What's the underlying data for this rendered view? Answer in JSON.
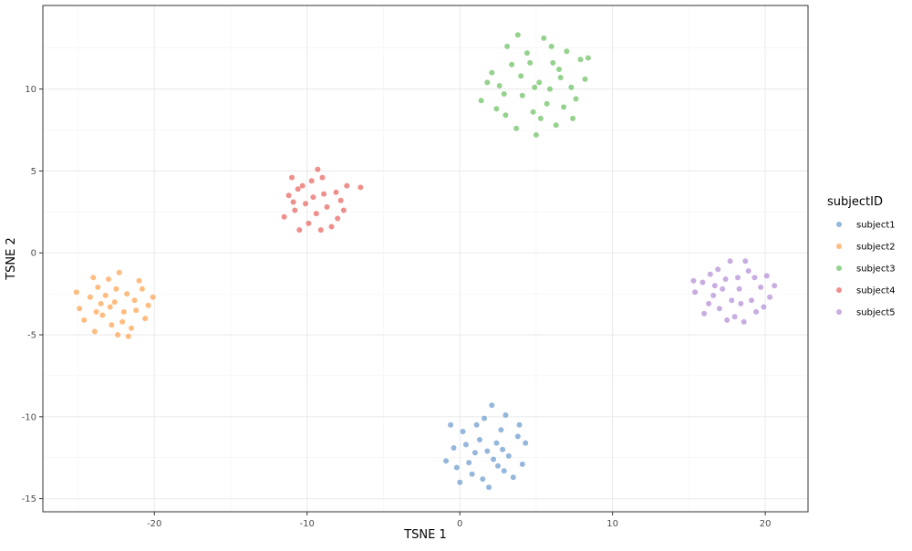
{
  "chart_data": {
    "type": "scatter",
    "title": "",
    "xlabel": "TSNE 1",
    "ylabel": "TSNE 2",
    "xlim": [
      -27.3,
      22.8
    ],
    "ylim": [
      -15.8,
      15.1
    ],
    "x_ticks": [
      -20,
      -10,
      0,
      10,
      20
    ],
    "x_tick_labels": [
      "-20",
      "-10",
      "0",
      "10",
      "20"
    ],
    "y_ticks": [
      -15,
      -10,
      -5,
      0,
      5,
      10
    ],
    "y_tick_labels": [
      "-15",
      "-10",
      "-5",
      "0",
      "5",
      "10"
    ],
    "grid": true,
    "legend": {
      "title": "subjectID",
      "position": "right"
    },
    "series": [
      {
        "name": "subject1",
        "color": "#6699CC",
        "points": [
          [
            1.8,
            -12.1
          ],
          [
            2.4,
            -11.6
          ],
          [
            0.6,
            -12.8
          ],
          [
            3.2,
            -12.4
          ],
          [
            1.1,
            -10.5
          ],
          [
            2.9,
            -13.3
          ],
          [
            -0.4,
            -11.9
          ],
          [
            1.5,
            -13.8
          ],
          [
            3.8,
            -11.2
          ],
          [
            0.2,
            -10.9
          ],
          [
            2.1,
            -9.3
          ],
          [
            4.1,
            -12.9
          ],
          [
            -0.9,
            -12.7
          ],
          [
            1.3,
            -11.4
          ],
          [
            2.7,
            -10.8
          ],
          [
            0.8,
            -13.5
          ],
          [
            3.5,
            -13.7
          ],
          [
            1.9,
            -14.3
          ],
          [
            -0.2,
            -13.1
          ],
          [
            4.3,
            -11.6
          ],
          [
            2.2,
            -12.6
          ],
          [
            0.4,
            -11.7
          ],
          [
            3.0,
            -9.9
          ],
          [
            1.6,
            -10.1
          ],
          [
            -0.6,
            -10.5
          ],
          [
            2.5,
            -13.0
          ],
          [
            3.9,
            -10.5
          ],
          [
            1.0,
            -12.2
          ],
          [
            0.0,
            -14.0
          ],
          [
            2.8,
            -12.0
          ]
        ]
      },
      {
        "name": "subject2",
        "color": "#FF9F4A",
        "points": [
          [
            -22.6,
            -3.0
          ],
          [
            -21.8,
            -2.5
          ],
          [
            -23.4,
            -3.8
          ],
          [
            -22.1,
            -4.2
          ],
          [
            -24.2,
            -2.7
          ],
          [
            -21.2,
            -3.5
          ],
          [
            -23.0,
            -1.6
          ],
          [
            -22.4,
            -5.0
          ],
          [
            -20.8,
            -2.2
          ],
          [
            -24.6,
            -4.1
          ],
          [
            -23.7,
            -2.1
          ],
          [
            -21.5,
            -4.6
          ],
          [
            -22.9,
            -3.3
          ],
          [
            -20.4,
            -3.2
          ],
          [
            -24.9,
            -3.4
          ],
          [
            -22.3,
            -1.2
          ],
          [
            -23.9,
            -4.8
          ],
          [
            -21.0,
            -1.7
          ],
          [
            -22.0,
            -3.6
          ],
          [
            -23.2,
            -2.6
          ],
          [
            -20.1,
            -2.7
          ],
          [
            -24.0,
            -1.5
          ],
          [
            -21.7,
            -5.1
          ],
          [
            -22.8,
            -4.4
          ],
          [
            -25.1,
            -2.4
          ],
          [
            -21.3,
            -2.9
          ],
          [
            -23.5,
            -3.1
          ],
          [
            -22.5,
            -2.2
          ],
          [
            -20.6,
            -4.0
          ],
          [
            -23.8,
            -3.6
          ]
        ]
      },
      {
        "name": "subject3",
        "color": "#66BF5C",
        "points": [
          [
            5.2,
            10.4
          ],
          [
            6.5,
            11.2
          ],
          [
            4.1,
            9.6
          ],
          [
            7.3,
            10.1
          ],
          [
            3.4,
            11.5
          ],
          [
            6.0,
            12.6
          ],
          [
            4.8,
            8.6
          ],
          [
            2.6,
            10.2
          ],
          [
            7.9,
            11.8
          ],
          [
            5.7,
            9.1
          ],
          [
            3.0,
            8.4
          ],
          [
            6.8,
            8.9
          ],
          [
            4.4,
            12.2
          ],
          [
            8.2,
            10.6
          ],
          [
            2.1,
            11.0
          ],
          [
            5.5,
            13.1
          ],
          [
            7.0,
            12.3
          ],
          [
            3.7,
            7.6
          ],
          [
            6.3,
            7.8
          ],
          [
            1.4,
            9.3
          ],
          [
            4.0,
            10.8
          ],
          [
            5.9,
            10.0
          ],
          [
            7.6,
            9.4
          ],
          [
            3.1,
            12.6
          ],
          [
            5.0,
            7.2
          ],
          [
            8.4,
            11.9
          ],
          [
            2.4,
            8.8
          ],
          [
            6.6,
            10.7
          ],
          [
            4.6,
            11.6
          ],
          [
            5.3,
            8.2
          ],
          [
            7.4,
            8.2
          ],
          [
            3.8,
            13.3
          ],
          [
            6.1,
            11.6
          ],
          [
            2.9,
            9.7
          ],
          [
            4.9,
            10.1
          ],
          [
            1.8,
            10.4
          ]
        ]
      },
      {
        "name": "subject4",
        "color": "#E8605A",
        "points": [
          [
            -9.6,
            3.4
          ],
          [
            -8.7,
            2.8
          ],
          [
            -10.3,
            4.1
          ],
          [
            -9.0,
            4.6
          ],
          [
            -10.8,
            2.6
          ],
          [
            -8.1,
            3.7
          ],
          [
            -9.9,
            1.8
          ],
          [
            -11.2,
            3.5
          ],
          [
            -7.6,
            2.6
          ],
          [
            -9.3,
            5.1
          ],
          [
            -10.5,
            1.4
          ],
          [
            -8.4,
            1.6
          ],
          [
            -11.0,
            4.6
          ],
          [
            -7.4,
            4.1
          ],
          [
            -9.4,
            2.4
          ],
          [
            -10.1,
            3.0
          ],
          [
            -8.9,
            3.6
          ],
          [
            -11.5,
            2.2
          ],
          [
            -8.0,
            2.1
          ],
          [
            -9.7,
            4.4
          ],
          [
            -10.6,
            3.9
          ],
          [
            -7.8,
            3.2
          ],
          [
            -9.1,
            1.4
          ],
          [
            -10.9,
            3.1
          ],
          [
            -6.5,
            4.0
          ]
        ]
      },
      {
        "name": "subject5",
        "color": "#B08AD6",
        "points": [
          [
            18.3,
            -2.2
          ],
          [
            17.4,
            -1.6
          ],
          [
            19.1,
            -2.9
          ],
          [
            16.6,
            -2.6
          ],
          [
            18.9,
            -1.1
          ],
          [
            17.0,
            -3.4
          ],
          [
            19.7,
            -2.1
          ],
          [
            15.9,
            -1.8
          ],
          [
            18.0,
            -3.9
          ],
          [
            20.1,
            -1.4
          ],
          [
            16.3,
            -3.1
          ],
          [
            17.7,
            -0.5
          ],
          [
            19.4,
            -3.6
          ],
          [
            15.4,
            -2.4
          ],
          [
            18.6,
            -4.2
          ],
          [
            16.9,
            -1.0
          ],
          [
            20.3,
            -2.7
          ],
          [
            17.2,
            -2.2
          ],
          [
            18.7,
            -0.5
          ],
          [
            16.0,
            -3.7
          ],
          [
            19.9,
            -3.3
          ],
          [
            17.5,
            -4.1
          ],
          [
            15.3,
            -1.7
          ],
          [
            18.2,
            -1.5
          ],
          [
            16.7,
            -2.0
          ],
          [
            19.3,
            -1.5
          ],
          [
            17.8,
            -2.9
          ],
          [
            20.6,
            -2.0
          ],
          [
            16.4,
            -1.3
          ],
          [
            18.4,
            -3.1
          ]
        ]
      }
    ]
  }
}
